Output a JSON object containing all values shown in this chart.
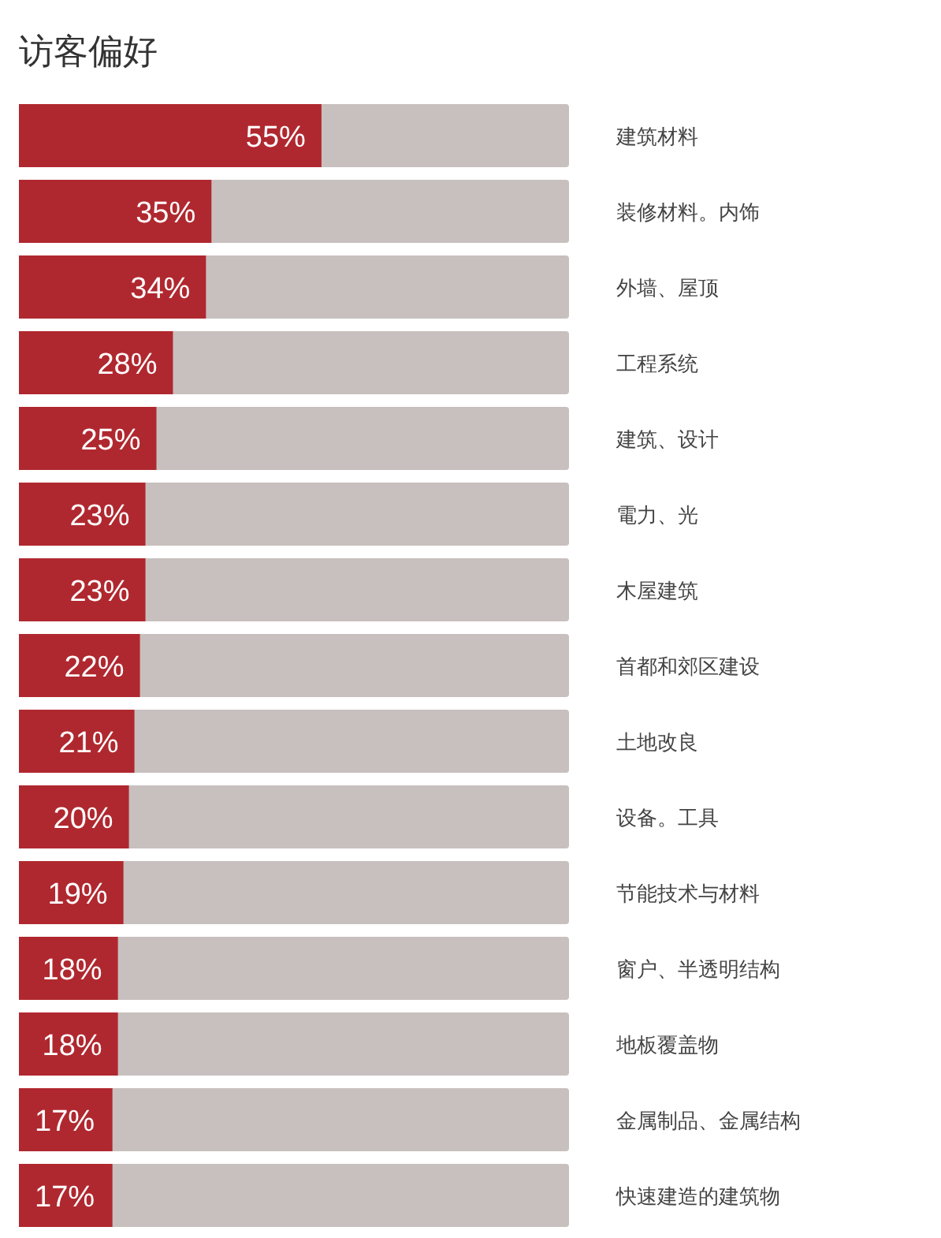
{
  "chart_data": {
    "type": "bar",
    "orientation": "horizontal",
    "title": "访客偏好",
    "categories": [
      "建筑材料",
      "装修材料。内饰",
      "外墙、屋顶",
      "工程系统",
      "建筑、设计",
      "電力、光",
      "木屋建筑",
      "首都和郊区建设",
      "土地改良",
      "设备。工具",
      "节能技术与材料",
      "窗户、半透明结构",
      "地板覆盖物",
      "金属制品、金属结构",
      "快速建造的建筑物"
    ],
    "values": [
      55,
      35,
      34,
      28,
      25,
      23,
      23,
      22,
      21,
      20,
      19,
      18,
      18,
      17,
      17
    ],
    "value_labels": [
      "55%",
      "35%",
      "34%",
      "28%",
      "25%",
      "23%",
      "23%",
      "22%",
      "21%",
      "20%",
      "19%",
      "18%",
      "18%",
      "17%",
      "17%"
    ],
    "color": "#b0282f",
    "xlim": [
      0,
      100
    ]
  }
}
